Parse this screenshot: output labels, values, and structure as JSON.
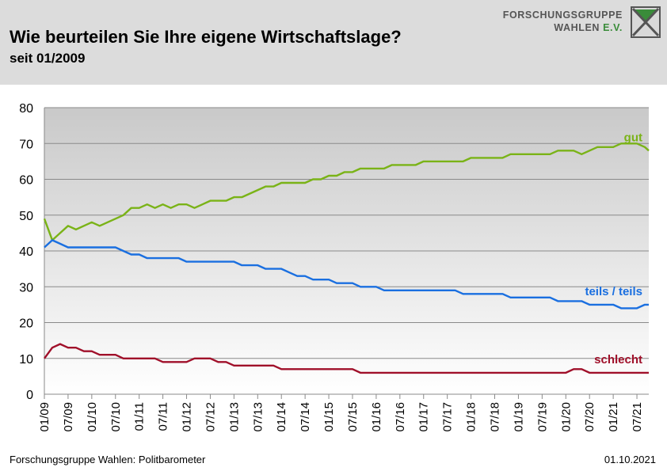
{
  "header": {
    "title": "Wie beurteilen Sie Ihre eigene Wirtschaftslage?",
    "subtitle": "seit 01/2009",
    "logo_line1": "FORSCHUNGSGRUPPE",
    "logo_line2": "WAHLEN",
    "logo_line2_suffix": "E.V."
  },
  "footer": {
    "source": "Forschungsgruppe Wahlen: Politbarometer",
    "date": "01.10.2021"
  },
  "colors": {
    "gut": "#7ab317",
    "teils": "#1a6fe0",
    "schlecht": "#a0102a"
  },
  "chart_data": {
    "type": "line",
    "title": "Wie beurteilen Sie Ihre eigene Wirtschaftslage?",
    "subtitle": "seit 01/2009",
    "xlabel": "",
    "ylabel": "",
    "xlim": [
      "01/09",
      "10/21"
    ],
    "ylim": [
      0,
      80
    ],
    "yticks": [
      0,
      10,
      20,
      30,
      40,
      50,
      60,
      70,
      80
    ],
    "xticks": [
      "01/09",
      "07/09",
      "01/10",
      "07/10",
      "01/11",
      "07/11",
      "01/12",
      "07/12",
      "01/13",
      "07/13",
      "01/14",
      "07/14",
      "01/15",
      "07/15",
      "01/16",
      "07/16",
      "01/17",
      "07/17",
      "01/18",
      "07/18",
      "01/19",
      "07/19",
      "01/20",
      "07/20",
      "01/21",
      "07/21"
    ],
    "grid": true,
    "legend": "inline labels at right end of lines",
    "series": [
      {
        "name": "gut",
        "color": "#7ab317",
        "points": [
          [
            "01/09",
            49
          ],
          [
            "03/09",
            43
          ],
          [
            "05/09",
            45
          ],
          [
            "07/09",
            47
          ],
          [
            "09/09",
            46
          ],
          [
            "11/09",
            47
          ],
          [
            "01/10",
            48
          ],
          [
            "03/10",
            47
          ],
          [
            "05/10",
            48
          ],
          [
            "07/10",
            49
          ],
          [
            "09/10",
            50
          ],
          [
            "11/10",
            52
          ],
          [
            "01/11",
            52
          ],
          [
            "03/11",
            53
          ],
          [
            "05/11",
            52
          ],
          [
            "07/11",
            53
          ],
          [
            "09/11",
            52
          ],
          [
            "11/11",
            53
          ],
          [
            "01/12",
            53
          ],
          [
            "03/12",
            52
          ],
          [
            "05/12",
            53
          ],
          [
            "07/12",
            54
          ],
          [
            "09/12",
            54
          ],
          [
            "11/12",
            54
          ],
          [
            "01/13",
            55
          ],
          [
            "03/13",
            55
          ],
          [
            "05/13",
            56
          ],
          [
            "07/13",
            57
          ],
          [
            "09/13",
            58
          ],
          [
            "11/13",
            58
          ],
          [
            "01/14",
            59
          ],
          [
            "03/14",
            59
          ],
          [
            "05/14",
            59
          ],
          [
            "07/14",
            59
          ],
          [
            "09/14",
            60
          ],
          [
            "11/14",
            60
          ],
          [
            "01/15",
            61
          ],
          [
            "03/15",
            61
          ],
          [
            "05/15",
            62
          ],
          [
            "07/15",
            62
          ],
          [
            "09/15",
            63
          ],
          [
            "11/15",
            63
          ],
          [
            "01/16",
            63
          ],
          [
            "03/16",
            63
          ],
          [
            "05/16",
            64
          ],
          [
            "07/16",
            64
          ],
          [
            "09/16",
            64
          ],
          [
            "11/16",
            64
          ],
          [
            "01/17",
            65
          ],
          [
            "03/17",
            65
          ],
          [
            "05/17",
            65
          ],
          [
            "07/17",
            65
          ],
          [
            "09/17",
            65
          ],
          [
            "11/17",
            65
          ],
          [
            "01/18",
            66
          ],
          [
            "03/18",
            66
          ],
          [
            "05/18",
            66
          ],
          [
            "07/18",
            66
          ],
          [
            "09/18",
            66
          ],
          [
            "11/18",
            67
          ],
          [
            "01/19",
            67
          ],
          [
            "03/19",
            67
          ],
          [
            "05/19",
            67
          ],
          [
            "07/19",
            67
          ],
          [
            "09/19",
            67
          ],
          [
            "11/19",
            68
          ],
          [
            "01/20",
            68
          ],
          [
            "03/20",
            68
          ],
          [
            "05/20",
            67
          ],
          [
            "07/20",
            68
          ],
          [
            "09/20",
            69
          ],
          [
            "11/20",
            69
          ],
          [
            "01/21",
            69
          ],
          [
            "03/21",
            70
          ],
          [
            "05/21",
            70
          ],
          [
            "07/21",
            70
          ],
          [
            "09/21",
            69
          ],
          [
            "10/21",
            68
          ]
        ]
      },
      {
        "name": "teils / teils",
        "color": "#1a6fe0",
        "points": [
          [
            "01/09",
            41
          ],
          [
            "03/09",
            43
          ],
          [
            "05/09",
            42
          ],
          [
            "07/09",
            41
          ],
          [
            "09/09",
            41
          ],
          [
            "11/09",
            41
          ],
          [
            "01/10",
            41
          ],
          [
            "03/10",
            41
          ],
          [
            "05/10",
            41
          ],
          [
            "07/10",
            41
          ],
          [
            "09/10",
            40
          ],
          [
            "11/10",
            39
          ],
          [
            "01/11",
            39
          ],
          [
            "03/11",
            38
          ],
          [
            "05/11",
            38
          ],
          [
            "07/11",
            38
          ],
          [
            "09/11",
            38
          ],
          [
            "11/11",
            38
          ],
          [
            "01/12",
            37
          ],
          [
            "03/12",
            37
          ],
          [
            "05/12",
            37
          ],
          [
            "07/12",
            37
          ],
          [
            "09/12",
            37
          ],
          [
            "11/12",
            37
          ],
          [
            "01/13",
            37
          ],
          [
            "03/13",
            36
          ],
          [
            "05/13",
            36
          ],
          [
            "07/13",
            36
          ],
          [
            "09/13",
            35
          ],
          [
            "11/13",
            35
          ],
          [
            "01/14",
            35
          ],
          [
            "03/14",
            34
          ],
          [
            "05/14",
            33
          ],
          [
            "07/14",
            33
          ],
          [
            "09/14",
            32
          ],
          [
            "11/14",
            32
          ],
          [
            "01/15",
            32
          ],
          [
            "03/15",
            31
          ],
          [
            "05/15",
            31
          ],
          [
            "07/15",
            31
          ],
          [
            "09/15",
            30
          ],
          [
            "11/15",
            30
          ],
          [
            "01/16",
            30
          ],
          [
            "03/16",
            29
          ],
          [
            "05/16",
            29
          ],
          [
            "07/16",
            29
          ],
          [
            "09/16",
            29
          ],
          [
            "11/16",
            29
          ],
          [
            "01/17",
            29
          ],
          [
            "03/17",
            29
          ],
          [
            "05/17",
            29
          ],
          [
            "07/17",
            29
          ],
          [
            "09/17",
            29
          ],
          [
            "11/17",
            28
          ],
          [
            "01/18",
            28
          ],
          [
            "03/18",
            28
          ],
          [
            "05/18",
            28
          ],
          [
            "07/18",
            28
          ],
          [
            "09/18",
            28
          ],
          [
            "11/18",
            27
          ],
          [
            "01/19",
            27
          ],
          [
            "03/19",
            27
          ],
          [
            "05/19",
            27
          ],
          [
            "07/19",
            27
          ],
          [
            "09/19",
            27
          ],
          [
            "11/19",
            26
          ],
          [
            "01/20",
            26
          ],
          [
            "03/20",
            26
          ],
          [
            "05/20",
            26
          ],
          [
            "07/20",
            25
          ],
          [
            "09/20",
            25
          ],
          [
            "11/20",
            25
          ],
          [
            "01/21",
            25
          ],
          [
            "03/21",
            24
          ],
          [
            "05/21",
            24
          ],
          [
            "07/21",
            24
          ],
          [
            "09/21",
            25
          ],
          [
            "10/21",
            25
          ]
        ]
      },
      {
        "name": "schlecht",
        "color": "#a0102a",
        "points": [
          [
            "01/09",
            10
          ],
          [
            "03/09",
            13
          ],
          [
            "05/09",
            14
          ],
          [
            "07/09",
            13
          ],
          [
            "09/09",
            13
          ],
          [
            "11/09",
            12
          ],
          [
            "01/10",
            12
          ],
          [
            "03/10",
            11
          ],
          [
            "05/10",
            11
          ],
          [
            "07/10",
            11
          ],
          [
            "09/10",
            10
          ],
          [
            "11/10",
            10
          ],
          [
            "01/11",
            10
          ],
          [
            "03/11",
            10
          ],
          [
            "05/11",
            10
          ],
          [
            "07/11",
            9
          ],
          [
            "09/11",
            9
          ],
          [
            "11/11",
            9
          ],
          [
            "01/12",
            9
          ],
          [
            "03/12",
            10
          ],
          [
            "05/12",
            10
          ],
          [
            "07/12",
            10
          ],
          [
            "09/12",
            9
          ],
          [
            "11/12",
            9
          ],
          [
            "01/13",
            8
          ],
          [
            "03/13",
            8
          ],
          [
            "05/13",
            8
          ],
          [
            "07/13",
            8
          ],
          [
            "09/13",
            8
          ],
          [
            "11/13",
            8
          ],
          [
            "01/14",
            7
          ],
          [
            "03/14",
            7
          ],
          [
            "05/14",
            7
          ],
          [
            "07/14",
            7
          ],
          [
            "09/14",
            7
          ],
          [
            "11/14",
            7
          ],
          [
            "01/15",
            7
          ],
          [
            "03/15",
            7
          ],
          [
            "05/15",
            7
          ],
          [
            "07/15",
            7
          ],
          [
            "09/15",
            6
          ],
          [
            "11/15",
            6
          ],
          [
            "01/16",
            6
          ],
          [
            "03/16",
            6
          ],
          [
            "05/16",
            6
          ],
          [
            "07/16",
            6
          ],
          [
            "09/16",
            6
          ],
          [
            "11/16",
            6
          ],
          [
            "01/17",
            6
          ],
          [
            "03/17",
            6
          ],
          [
            "05/17",
            6
          ],
          [
            "07/17",
            6
          ],
          [
            "09/17",
            6
          ],
          [
            "11/17",
            6
          ],
          [
            "01/18",
            6
          ],
          [
            "03/18",
            6
          ],
          [
            "05/18",
            6
          ],
          [
            "07/18",
            6
          ],
          [
            "09/18",
            6
          ],
          [
            "11/18",
            6
          ],
          [
            "01/19",
            6
          ],
          [
            "03/19",
            6
          ],
          [
            "05/19",
            6
          ],
          [
            "07/19",
            6
          ],
          [
            "09/19",
            6
          ],
          [
            "11/19",
            6
          ],
          [
            "01/20",
            6
          ],
          [
            "03/20",
            7
          ],
          [
            "05/20",
            7
          ],
          [
            "07/20",
            6
          ],
          [
            "09/20",
            6
          ],
          [
            "11/20",
            6
          ],
          [
            "01/21",
            6
          ],
          [
            "03/21",
            6
          ],
          [
            "05/21",
            6
          ],
          [
            "07/21",
            6
          ],
          [
            "09/21",
            6
          ],
          [
            "10/21",
            6
          ]
        ]
      }
    ]
  }
}
